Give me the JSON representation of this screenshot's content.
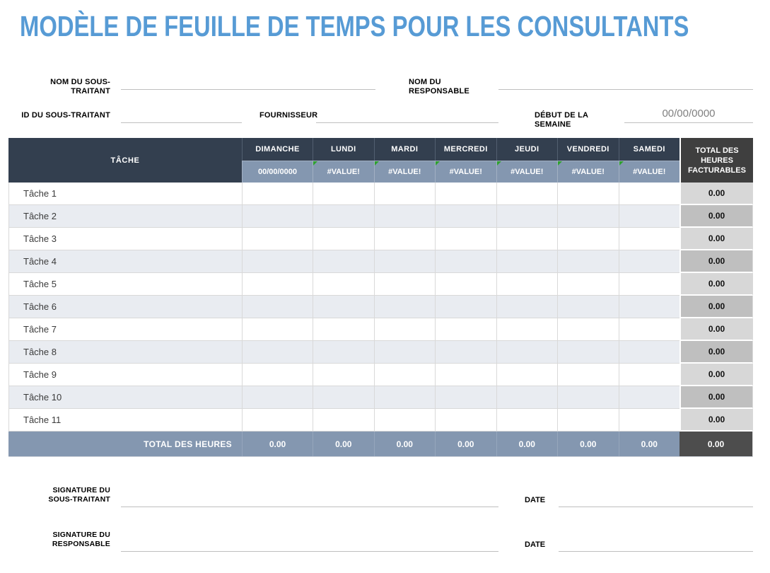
{
  "title": "MODÈLE DE FEUILLE DE TEMPS POUR LES CONSULTANTS",
  "colors": {
    "accent": "#579BD5",
    "header_dark": "#333F4F",
    "header_blue": "#8497B0",
    "total_header_dark": "#3F3F3F",
    "grand_cell_dark": "#4D4D4D",
    "row_alt": "#E9ECF1",
    "total_col_light": "#D7D7D7",
    "total_col_dark": "#BFBFBF",
    "grid_line": "#D9D9D9",
    "underline": "#BFBFBF",
    "value_gray": "#808080",
    "error_green": "#2FA12F"
  },
  "form": {
    "nom_sous_traitant": {
      "label": "NOM DU SOUS-TRAITANT",
      "value": ""
    },
    "nom_responsable": {
      "label": "NOM DU RESPONSABLE",
      "value": ""
    },
    "id_sous_traitant": {
      "label": "ID DU SOUS-TRAITANT",
      "value": ""
    },
    "fournisseur": {
      "label": "FOURNISSEUR",
      "value": ""
    },
    "debut_semaine": {
      "label": "DÉBUT DE LA SEMAINE",
      "value": "00/00/0000"
    }
  },
  "table": {
    "task_header": "TÂCHE",
    "total_header": "TOTAL DES HEURES FACTURABLES",
    "day_headers": [
      "DIMANCHE",
      "LUNDI",
      "MARDI",
      "MERCREDI",
      "JEUDI",
      "VENDREDI",
      "SAMEDI"
    ],
    "subheader": [
      {
        "text": "00/00/0000",
        "error": false
      },
      {
        "text": "#VALUE!",
        "error": true
      },
      {
        "text": "#VALUE!",
        "error": true
      },
      {
        "text": "#VALUE!",
        "error": true
      },
      {
        "text": "#VALUE!",
        "error": true
      },
      {
        "text": "#VALUE!",
        "error": true
      },
      {
        "text": "#VALUE!",
        "error": true
      }
    ],
    "rows": [
      {
        "task": "Tâche 1",
        "days": [
          "",
          "",
          "",
          "",
          "",
          "",
          ""
        ],
        "total": "0.00"
      },
      {
        "task": "Tâche 2",
        "days": [
          "",
          "",
          "",
          "",
          "",
          "",
          ""
        ],
        "total": "0.00"
      },
      {
        "task": "Tâche 3",
        "days": [
          "",
          "",
          "",
          "",
          "",
          "",
          ""
        ],
        "total": "0.00"
      },
      {
        "task": "Tâche 4",
        "days": [
          "",
          "",
          "",
          "",
          "",
          "",
          ""
        ],
        "total": "0.00"
      },
      {
        "task": "Tâche 5",
        "days": [
          "",
          "",
          "",
          "",
          "",
          "",
          ""
        ],
        "total": "0.00"
      },
      {
        "task": "Tâche 6",
        "days": [
          "",
          "",
          "",
          "",
          "",
          "",
          ""
        ],
        "total": "0.00"
      },
      {
        "task": "Tâche 7",
        "days": [
          "",
          "",
          "",
          "",
          "",
          "",
          ""
        ],
        "total": "0.00"
      },
      {
        "task": "Tâche 8",
        "days": [
          "",
          "",
          "",
          "",
          "",
          "",
          ""
        ],
        "total": "0.00"
      },
      {
        "task": "Tâche 9",
        "days": [
          "",
          "",
          "",
          "",
          "",
          "",
          ""
        ],
        "total": "0.00"
      },
      {
        "task": "Tâche 10",
        "days": [
          "",
          "",
          "",
          "",
          "",
          "",
          ""
        ],
        "total": "0.00"
      },
      {
        "task": "Tâche 11",
        "days": [
          "",
          "",
          "",
          "",
          "",
          "",
          ""
        ],
        "total": "0.00"
      }
    ],
    "footer": {
      "label": "TOTAL DES HEURES",
      "day_totals": [
        "0.00",
        "0.00",
        "0.00",
        "0.00",
        "0.00",
        "0.00",
        "0.00"
      ],
      "grand_total": "0.00"
    }
  },
  "signatures": {
    "sous_traitant": {
      "label": "SIGNATURE DU SOUS-TRAITANT",
      "date_label": "DATE"
    },
    "responsable": {
      "label": "SIGNATURE DU RESPONSABLE",
      "date_label": "DATE"
    }
  }
}
